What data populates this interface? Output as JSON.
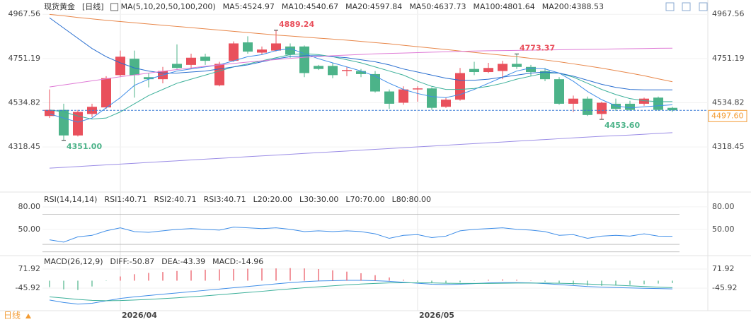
{
  "header": {
    "title": "现货黄金",
    "period": "[日线]"
  },
  "footer": {
    "period": "日线"
  },
  "chart_data": [
    {
      "type": "candlestick",
      "indicator": "MA(5,10,20,50,100,200)",
      "categories": [
        null,
        null,
        null,
        null,
        null,
        "2026/04",
        null,
        null,
        null,
        null,
        null,
        null,
        null,
        null,
        null,
        null,
        null,
        null,
        null,
        null,
        null,
        null,
        null,
        null,
        null,
        null,
        "2026/05",
        null,
        null,
        null,
        null,
        null,
        null,
        null,
        null,
        null,
        null,
        null,
        null,
        null,
        null,
        null,
        null,
        null,
        null
      ],
      "open": [
        4470,
        4500,
        4375,
        4480,
        4512,
        4670,
        4750,
        4660,
        4650,
        4725,
        4720,
        4760,
        4620,
        4740,
        4830,
        4780,
        4790,
        4810,
        4810,
        4715,
        4715,
        4690,
        4690,
        4675,
        4590,
        4535,
        4600,
        4605,
        4515,
        4550,
        4700,
        4685,
        4690,
        4725,
        4710,
        4690,
        4650,
        4530,
        4555,
        4480,
        4530,
        4530,
        4530,
        4560,
        4510
      ],
      "high": [
        4600,
        4530,
        4500,
        4530,
        4665,
        4790,
        4790,
        4680,
        4710,
        4820,
        4775,
        4775,
        4735,
        4835,
        4860,
        4810,
        4889.24,
        4825,
        4815,
        4720,
        4730,
        4710,
        4700,
        4690,
        4600,
        4615,
        4615,
        4610,
        4560,
        4705,
        4735,
        4730,
        4740,
        4773.37,
        4720,
        4705,
        4660,
        4570,
        4565,
        4540,
        4555,
        4545,
        4560,
        4565,
        4515
      ],
      "low": [
        4460,
        4351,
        4370,
        4465,
        4505,
        4660,
        4560,
        4610,
        4630,
        4700,
        4700,
        4720,
        4615,
        4735,
        4775,
        4770,
        4785,
        4755,
        4660,
        4695,
        4655,
        4665,
        4660,
        4585,
        4505,
        4525,
        4540,
        4500,
        4510,
        4545,
        4670,
        4680,
        4650,
        4700,
        4665,
        4640,
        4525,
        4490,
        4470,
        4453.6,
        4495,
        4495,
        4520,
        4495,
        4490
      ],
      "close": [
        4500,
        4375,
        4490,
        4515,
        4655,
        4760,
        4670,
        4650,
        4690,
        4705,
        4755,
        4740,
        4725,
        4825,
        4785,
        4795,
        4825,
        4770,
        4680,
        4700,
        4670,
        4695,
        4675,
        4590,
        4530,
        4600,
        4605,
        4510,
        4550,
        4680,
        4685,
        4705,
        4725,
        4710,
        4685,
        4650,
        4530,
        4555,
        4475,
        4535,
        4505,
        4500,
        4555,
        4500,
        4497.6
      ],
      "up_color": "#e9505c",
      "down_color": "#4cb389",
      "series": [
        {
          "name": "MA5:4524.97",
          "color": "#3f8ee8",
          "values": [
            4480,
            4460,
            4440,
            4460,
            4510,
            4560,
            4620,
            4650,
            4670,
            4690,
            4700,
            4710,
            4720,
            4740,
            4760,
            4770,
            4790,
            4800,
            4775,
            4750,
            4730,
            4710,
            4690,
            4665,
            4630,
            4600,
            4580,
            4565,
            4560,
            4575,
            4600,
            4630,
            4660,
            4690,
            4705,
            4700,
            4680,
            4640,
            4590,
            4550,
            4520,
            4510,
            4515,
            4520,
            4524.97
          ]
        },
        {
          "name": "MA10:4540.67",
          "color": "#3cb09a",
          "values": [
            4500,
            4490,
            4470,
            4455,
            4460,
            4490,
            4530,
            4570,
            4600,
            4630,
            4650,
            4670,
            4690,
            4710,
            4725,
            4740,
            4755,
            4770,
            4775,
            4770,
            4760,
            4745,
            4730,
            4710,
            4690,
            4670,
            4640,
            4615,
            4600,
            4600,
            4605,
            4615,
            4630,
            4650,
            4665,
            4680,
            4680,
            4660,
            4630,
            4600,
            4575,
            4555,
            4545,
            4540,
            4540.67
          ]
        },
        {
          "name": "MA20:4597.84",
          "color": "#2a6fd0",
          "values": [
            4950,
            4900,
            4850,
            4800,
            4760,
            4730,
            4705,
            4690,
            4680,
            4680,
            4685,
            4690,
            4700,
            4710,
            4720,
            4735,
            4750,
            4760,
            4765,
            4765,
            4760,
            4755,
            4745,
            4735,
            4720,
            4700,
            4685,
            4670,
            4655,
            4645,
            4645,
            4650,
            4660,
            4670,
            4680,
            4685,
            4680,
            4665,
            4645,
            4625,
            4610,
            4600,
            4598,
            4598,
            4597.84
          ]
        },
        {
          "name": "MA50:4637.73",
          "color": "#e8874a",
          "values": [
            4967,
            4960,
            4952,
            4945,
            4938,
            4932,
            4926,
            4920,
            4914,
            4908,
            4902,
            4896,
            4890,
            4884,
            4878,
            4872,
            4866,
            4861,
            4856,
            4851,
            4846,
            4841,
            4835,
            4829,
            4823,
            4816,
            4809,
            4802,
            4795,
            4788,
            4781,
            4774,
            4767,
            4760,
            4752,
            4744,
            4735,
            4725,
            4715,
            4704,
            4692,
            4680,
            4667,
            4652,
            4637.73
          ]
        },
        {
          "name": "MA100:4801.64",
          "color": "#df7bd6",
          "values": [
            4612,
            4622,
            4632,
            4642,
            4652,
            4662,
            4671,
            4680,
            4689,
            4697,
            4705,
            4713,
            4720,
            4727,
            4734,
            4740,
            4746,
            4752,
            4757,
            4761,
            4765,
            4768,
            4771,
            4774,
            4776,
            4778,
            4780,
            4782,
            4784,
            4786,
            4788,
            4789,
            4790,
            4791,
            4792,
            4793,
            4794,
            4795,
            4796,
            4797,
            4798,
            4799,
            4800,
            4801,
            4801.64
          ]
        },
        {
          "name": "MA200:4388.53",
          "color": "#9b8de6",
          "values": [
            4215,
            4219,
            4223,
            4227,
            4231,
            4235,
            4239,
            4243,
            4247,
            4251,
            4255,
            4259,
            4263,
            4267,
            4271,
            4275,
            4279,
            4283,
            4287,
            4291,
            4295,
            4299,
            4303,
            4307,
            4311,
            4315,
            4319,
            4323,
            4327,
            4331,
            4335,
            4339,
            4343,
            4347,
            4351,
            4355,
            4359,
            4363,
            4367,
            4371,
            4374,
            4377,
            4381,
            4385,
            4388.53
          ]
        }
      ],
      "annotations": [
        {
          "value": 4889.24,
          "label": "4889.24"
        },
        {
          "value": 4773.37,
          "label": "4773.37"
        },
        {
          "value": 4351,
          "label": "4351.00"
        },
        {
          "value": 4453.6,
          "label": "4453.60"
        }
      ],
      "last_price": {
        "value": 4497.6,
        "label": "4497.60"
      },
      "ylim": [
        4105,
        5020
      ],
      "yticks": [
        4967.56,
        4751.19,
        4534.82,
        4318.45
      ]
    },
    {
      "type": "line",
      "indicator": "RSI(14,14,14)",
      "series": [
        {
          "name": "RSI1:40.71",
          "color": "#3f8ee8",
          "values": [
            36,
            33,
            40,
            42,
            48,
            52,
            47,
            46,
            48,
            50,
            51,
            50,
            49,
            53,
            52,
            51,
            52,
            50,
            47,
            48,
            47,
            48,
            47,
            44,
            38,
            42,
            43,
            39,
            41,
            48,
            50,
            51,
            52,
            50,
            49,
            47,
            42,
            43,
            38,
            41,
            42,
            41,
            44,
            41,
            40.71
          ]
        }
      ],
      "extra_legend": [
        {
          "text": "RSI2:40.71",
          "color": "#3cb09a"
        },
        {
          "text": "RSI3:40.71",
          "color": "#2a6fd0"
        }
      ],
      "levels": [
        {
          "value": 20,
          "label": "L20:20.00"
        },
        {
          "value": 30,
          "label": "L30:30.00"
        },
        {
          "value": 70,
          "label": "L70:70.00"
        },
        {
          "value": 80,
          "label": "L80:80.00"
        }
      ],
      "level_color": "#b5b5b5",
      "ylim": [
        15,
        94
      ],
      "yticks": [
        {
          "value": 80,
          "label": "80.00"
        },
        {
          "value": 50,
          "label": "50.00"
        }
      ]
    },
    {
      "type": "macd",
      "indicator": "MACD(26,12,9)",
      "up_color": "#e9505c",
      "down_color": "#4cb389",
      "series": [
        {
          "name": "DIFF:-50.87",
          "color": "#3f8ee8",
          "values": [
            -120,
            -135,
            -145,
            -140,
            -125,
            -110,
            -100,
            -92,
            -84,
            -76,
            -68,
            -60,
            -52,
            -44,
            -36,
            -28,
            -20,
            -12,
            -6,
            -2,
            0,
            2,
            2,
            0,
            -4,
            -10,
            -16,
            -22,
            -24,
            -22,
            -18,
            -14,
            -12,
            -12,
            -14,
            -18,
            -24,
            -30,
            -36,
            -40,
            -43,
            -45,
            -47,
            -49,
            -50.87
          ]
        },
        {
          "name": "DEA:-43.39",
          "color": "#3cb09a",
          "values": [
            -100,
            -108,
            -116,
            -122,
            -124,
            -123,
            -120,
            -116,
            -111,
            -106,
            -100,
            -94,
            -87,
            -80,
            -73,
            -66,
            -58,
            -51,
            -44,
            -38,
            -32,
            -26,
            -21,
            -17,
            -14,
            -13,
            -13,
            -14,
            -16,
            -17,
            -17,
            -17,
            -16,
            -15,
            -15,
            -15,
            -16,
            -18,
            -21,
            -24,
            -28,
            -32,
            -36,
            -40,
            -43.39
          ]
        },
        {
          "name": "MACD:-14.96",
          "color": "#2a6fd0",
          "style": "bar",
          "values": [
            -40,
            -54,
            -58,
            -36,
            -2,
            26,
            40,
            48,
            54,
            60,
            64,
            68,
            70,
            72,
            74,
            76,
            76,
            78,
            76,
            72,
            64,
            56,
            46,
            34,
            20,
            6,
            -6,
            -16,
            -16,
            -10,
            -2,
            6,
            8,
            6,
            2,
            -6,
            -16,
            -24,
            -30,
            -32,
            -30,
            -26,
            -22,
            -18,
            -14.96
          ]
        }
      ],
      "ylim": [
        -186,
        142
      ],
      "yticks": [
        71.92,
        -45.92
      ]
    }
  ]
}
